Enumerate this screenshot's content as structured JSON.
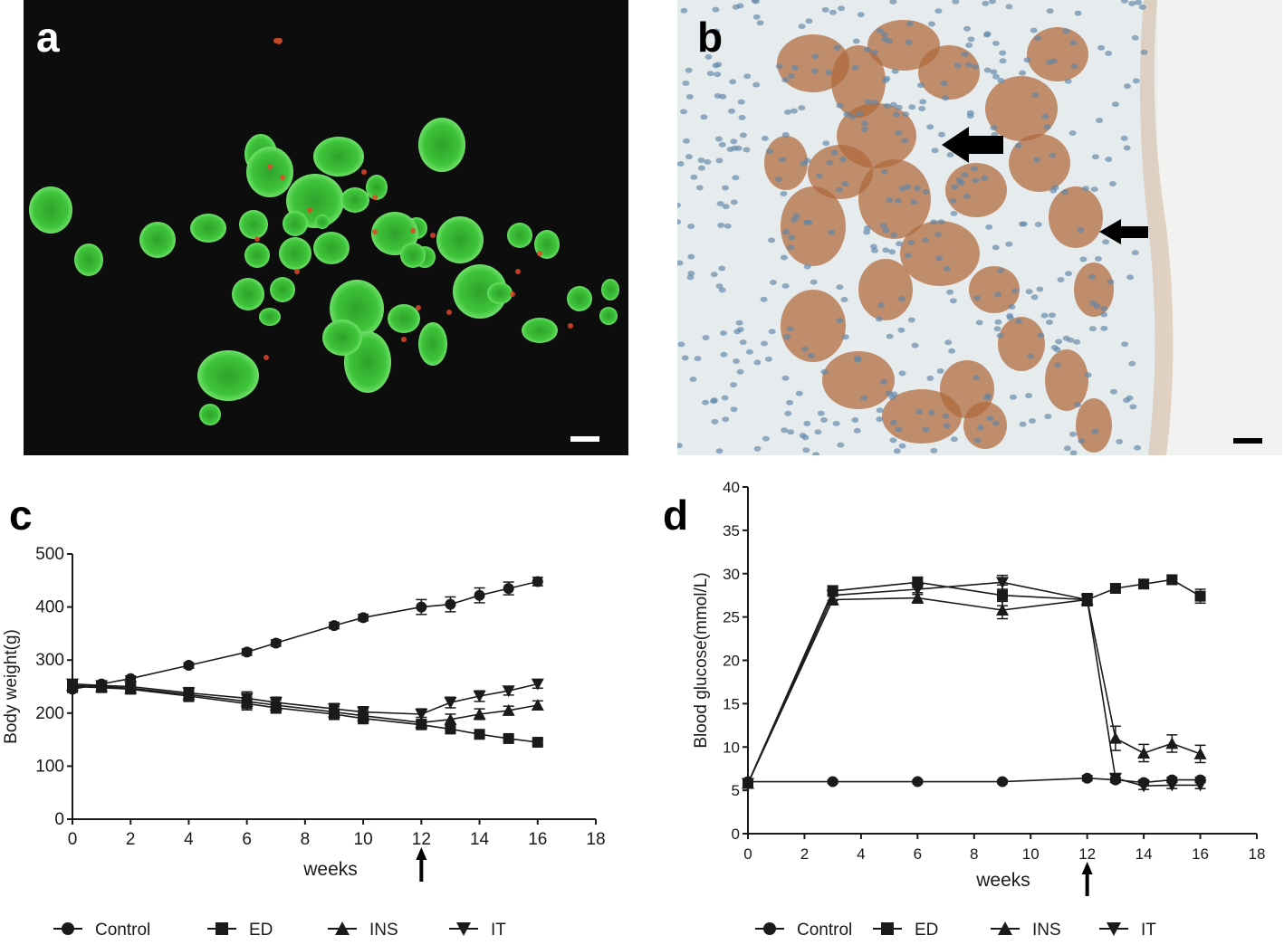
{
  "panels": {
    "a": {
      "label": "a"
    },
    "b": {
      "label": "b"
    },
    "c": {
      "label": "c"
    },
    "d": {
      "label": "d"
    }
  },
  "colors": {
    "fluorescence_bg": "#0d0d0d",
    "islet_green": "#3ec43a",
    "stain_red": "#e0462a",
    "tissue_bg": "#e6ecee",
    "brown_stain": "#b0683a",
    "nuclei_blue": "#5f86a6",
    "line": "#1a1a1a"
  },
  "chart_data": [
    {
      "id": "c",
      "type": "line",
      "title": "",
      "xlabel": "weeks",
      "ylabel": "Body weight(g)",
      "xlim": [
        0,
        18
      ],
      "ylim": [
        0,
        500
      ],
      "xticks": [
        0,
        2,
        4,
        6,
        8,
        10,
        12,
        14,
        16,
        18
      ],
      "yticks": [
        0,
        100,
        200,
        300,
        400,
        500
      ],
      "grid": false,
      "legend": "bottom",
      "annotation_arrow_x": 12,
      "series": [
        {
          "name": "Control",
          "marker": "circle",
          "x": [
            0,
            1,
            2,
            4,
            6,
            7,
            9,
            10,
            12,
            13,
            14,
            15,
            16
          ],
          "y": [
            245,
            255,
            265,
            290,
            315,
            332,
            365,
            380,
            400,
            405,
            422,
            435,
            448
          ],
          "err": [
            6,
            5,
            5,
            5,
            6,
            6,
            6,
            6,
            14,
            14,
            14,
            12,
            8
          ]
        },
        {
          "name": "ED",
          "marker": "square",
          "x": [
            0,
            1,
            2,
            4,
            6,
            7,
            9,
            10,
            12,
            13,
            14,
            15,
            16
          ],
          "y": [
            250,
            248,
            245,
            232,
            218,
            210,
            198,
            190,
            178,
            170,
            160,
            152,
            145
          ],
          "err": [
            8,
            8,
            8,
            10,
            12,
            10,
            10,
            10,
            8,
            8,
            6,
            5,
            5
          ]
        },
        {
          "name": "INS",
          "marker": "triangle-up",
          "x": [
            0,
            1,
            2,
            4,
            6,
            7,
            9,
            10,
            12,
            13,
            14,
            15,
            16
          ],
          "y": [
            252,
            250,
            247,
            235,
            222,
            215,
            202,
            195,
            182,
            188,
            198,
            205,
            215
          ],
          "err": [
            8,
            8,
            8,
            10,
            12,
            10,
            10,
            10,
            10,
            10,
            10,
            8,
            8
          ]
        },
        {
          "name": "IT",
          "marker": "triangle-down",
          "x": [
            0,
            1,
            2,
            4,
            6,
            7,
            9,
            10,
            12,
            13,
            14,
            15,
            16
          ],
          "y": [
            255,
            252,
            250,
            238,
            228,
            220,
            208,
            202,
            198,
            220,
            232,
            242,
            255
          ],
          "err": [
            8,
            8,
            8,
            10,
            12,
            10,
            10,
            10,
            10,
            10,
            10,
            8,
            8
          ]
        }
      ]
    },
    {
      "id": "d",
      "type": "line",
      "title": "",
      "xlabel": "weeks",
      "ylabel": "Blood glucose(mmol/L)",
      "xlim": [
        0,
        18
      ],
      "ylim": [
        0,
        40
      ],
      "xticks": [
        0,
        2,
        4,
        6,
        8,
        10,
        12,
        14,
        16,
        18
      ],
      "yticks": [
        0,
        5,
        10,
        15,
        20,
        25,
        30,
        35,
        40
      ],
      "grid": false,
      "legend": "bottom",
      "annotation_arrow_x": 12,
      "series": [
        {
          "name": "Control",
          "marker": "circle",
          "x": [
            0,
            3,
            6,
            9,
            12,
            13,
            14,
            15,
            16
          ],
          "y": [
            6.0,
            6.0,
            6.0,
            6.0,
            6.4,
            6.2,
            5.9,
            6.2,
            6.2
          ],
          "err": [
            0.3,
            0.2,
            0.2,
            0.2,
            0.3,
            0.3,
            0.3,
            0.3,
            0.3
          ]
        },
        {
          "name": "ED",
          "marker": "square",
          "x": [
            0,
            3,
            6,
            9,
            12,
            13,
            14,
            15,
            16
          ],
          "y": [
            5.8,
            28.0,
            29.0,
            27.5,
            27.0,
            28.3,
            28.8,
            29.3,
            27.4
          ],
          "err": [
            0.5,
            0.6,
            0.6,
            1.2,
            0.7,
            0.5,
            0.5,
            0.5,
            0.8
          ]
        },
        {
          "name": "INS",
          "marker": "triangle-up",
          "x": [
            0,
            3,
            6,
            9,
            12,
            13,
            14,
            15,
            16
          ],
          "y": [
            5.8,
            27.0,
            27.2,
            25.8,
            27.0,
            11.0,
            9.3,
            10.4,
            9.2
          ],
          "err": [
            0.5,
            0.6,
            0.6,
            1.0,
            0.7,
            1.4,
            1.0,
            1.0,
            1.0
          ]
        },
        {
          "name": "IT",
          "marker": "triangle-down",
          "x": [
            0,
            3,
            6,
            9,
            12,
            13,
            14,
            15,
            16
          ],
          "y": [
            5.8,
            27.5,
            28.2,
            29.0,
            27.0,
            6.4,
            5.5,
            5.6,
            5.6
          ],
          "err": [
            0.5,
            0.6,
            0.6,
            0.8,
            0.7,
            0.4,
            0.4,
            0.4,
            0.4
          ]
        }
      ]
    }
  ]
}
